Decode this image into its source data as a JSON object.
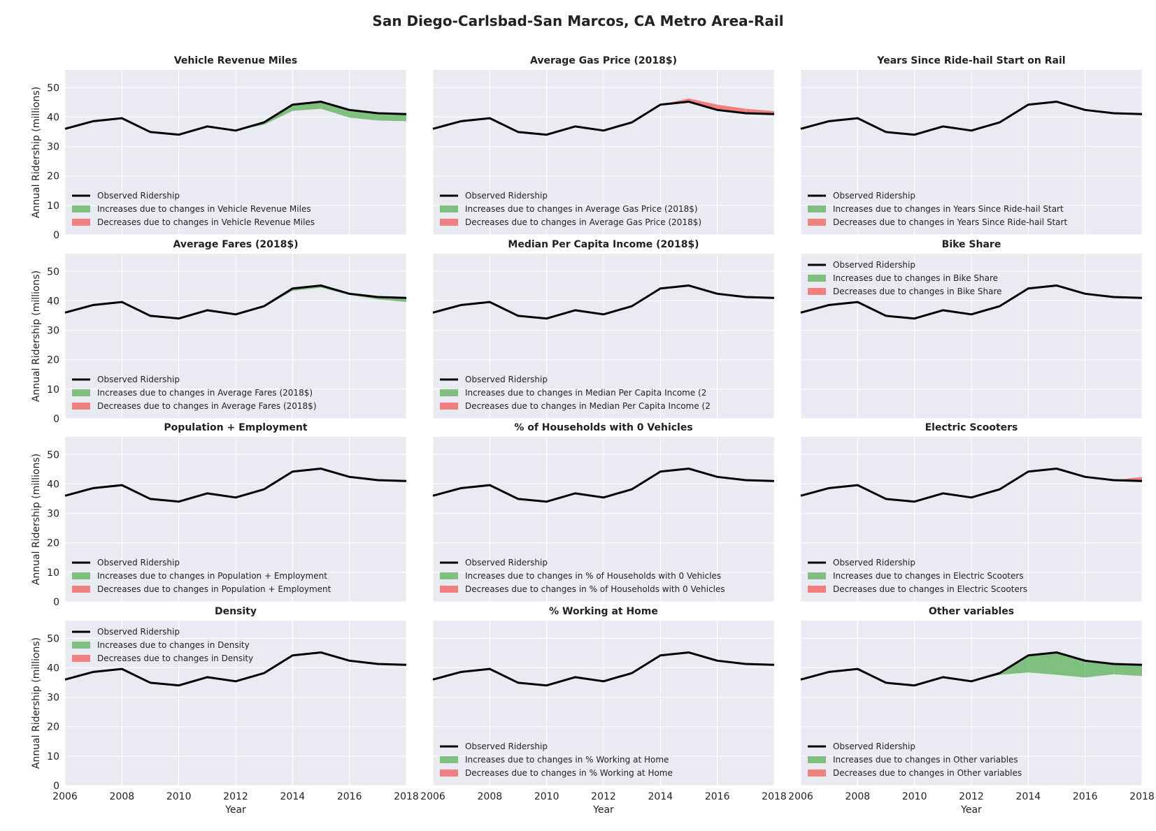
{
  "figure": {
    "title": "San Diego-Carlsbad-San Marcos, CA Metro Area-Rail",
    "xlabel": "Year",
    "ylabel": "Annual Ridership (millions)",
    "colors": {
      "observed": "#000000",
      "increase": "#7fbf7f",
      "decrease": "#f08080",
      "panel_bg": "#eaeaf2",
      "grid": "#ffffff"
    }
  },
  "chart_data": {
    "type": "line",
    "x": [
      2006,
      2007,
      2008,
      2009,
      2010,
      2011,
      2012,
      2013,
      2014,
      2015,
      2016,
      2017,
      2018
    ],
    "observed": [
      36.0,
      38.6,
      39.6,
      34.9,
      34.0,
      36.8,
      35.4,
      38.2,
      44.2,
      45.2,
      42.4,
      41.3,
      41.0
    ],
    "xlim": [
      2006,
      2018
    ],
    "ylim": [
      0,
      56
    ],
    "xticks": [
      "2006",
      "2008",
      "2010",
      "2012",
      "2014",
      "2016",
      "2018"
    ],
    "yticks": [
      "0",
      "10",
      "20",
      "30",
      "40",
      "50"
    ],
    "grid": true,
    "panels": [
      {
        "title": "Vehicle Revenue Miles",
        "legend_loc": "lower-left",
        "legend": [
          "Observed Ridership",
          "Increases due to changes in Vehicle Revenue Miles",
          "Decreases due to changes in Vehicle Revenue Miles"
        ],
        "counterfactual": [
          36.0,
          38.6,
          39.6,
          34.9,
          34.0,
          36.8,
          35.4,
          37.4,
          42.1,
          42.8,
          39.8,
          38.8,
          38.6
        ]
      },
      {
        "title": "Average Gas Price (2018$)",
        "legend_loc": "lower-left",
        "legend": [
          "Observed Ridership",
          "Increases due to changes in Average Gas Price (2018$)",
          "Decreases due to changes in Average Gas Price (2018$)"
        ],
        "counterfactual": [
          36.0,
          38.6,
          39.6,
          34.9,
          34.0,
          36.8,
          35.4,
          38.2,
          44.2,
          46.3,
          44.2,
          42.8,
          42.0
        ]
      },
      {
        "title": "Years Since Ride-hail Start on Rail",
        "legend_loc": "lower-left",
        "legend": [
          "Observed Ridership",
          "Increases due to changes in Years Since Ride-hail Start",
          "Decreases due to changes in Years Since Ride-hail Start"
        ],
        "counterfactual": [
          36.0,
          38.6,
          39.6,
          34.9,
          34.0,
          36.8,
          35.4,
          38.2,
          44.2,
          45.2,
          42.4,
          41.3,
          41.0
        ]
      },
      {
        "title": "Average Fares (2018$)",
        "legend_loc": "lower-left",
        "legend": [
          "Observed Ridership",
          "Increases due to changes in Average Fares (2018$)",
          "Decreases due to changes in Average Fares (2018$)"
        ],
        "counterfactual": [
          36.0,
          38.6,
          39.6,
          34.9,
          34.0,
          36.8,
          35.4,
          38.0,
          43.4,
          44.5,
          42.0,
          40.5,
          39.6
        ]
      },
      {
        "title": "Median Per Capita Income (2018$)",
        "legend_loc": "lower-left",
        "legend": [
          "Observed Ridership",
          "Increases due to changes in Median Per Capita Income (2",
          "Decreases due to changes in Median Per Capita Income (2"
        ],
        "counterfactual": [
          36.0,
          38.6,
          39.6,
          34.9,
          34.0,
          36.8,
          35.4,
          38.2,
          44.2,
          45.2,
          42.4,
          41.3,
          41.0
        ]
      },
      {
        "title": "Bike Share",
        "legend_loc": "upper-left",
        "legend": [
          "Observed Ridership",
          "Increases due to changes in Bike Share",
          "Decreases due to changes in Bike Share"
        ],
        "counterfactual": [
          36.0,
          38.6,
          39.6,
          34.9,
          34.0,
          36.8,
          35.4,
          38.2,
          44.2,
          45.2,
          42.4,
          41.3,
          41.0
        ]
      },
      {
        "title": "Population + Employment",
        "legend_loc": "lower-left",
        "legend": [
          "Observed Ridership",
          "Increases due to changes in Population + Employment",
          "Decreases due to changes in Population + Employment"
        ],
        "counterfactual": [
          36.0,
          38.6,
          39.6,
          34.9,
          34.0,
          36.8,
          35.4,
          38.2,
          44.2,
          45.2,
          42.4,
          41.3,
          41.0
        ]
      },
      {
        "title": "% of Households with 0 Vehicles",
        "legend_loc": "lower-left",
        "legend": [
          "Observed Ridership",
          "Increases due to changes in % of Households with 0 Vehicles",
          "Decreases due to changes in % of Households with 0 Vehicles"
        ],
        "counterfactual": [
          36.0,
          38.6,
          39.6,
          34.9,
          34.0,
          36.8,
          35.4,
          38.2,
          44.2,
          45.2,
          42.4,
          41.3,
          41.0
        ]
      },
      {
        "title": "Electric Scooters",
        "legend_loc": "lower-left",
        "legend": [
          "Observed Ridership",
          "Increases due to changes in Electric Scooters",
          "Decreases due to changes in Electric Scooters"
        ],
        "counterfactual": [
          36.0,
          38.6,
          39.6,
          34.9,
          34.0,
          36.8,
          35.4,
          38.2,
          44.2,
          45.2,
          42.4,
          41.3,
          42.4
        ]
      },
      {
        "title": "Density",
        "legend_loc": "upper-left",
        "legend": [
          "Observed Ridership",
          "Increases due to changes in Density",
          "Decreases due to changes in Density"
        ],
        "counterfactual": [
          36.0,
          38.6,
          39.6,
          34.9,
          34.0,
          36.8,
          35.4,
          38.2,
          44.2,
          45.2,
          42.4,
          41.3,
          41.0
        ]
      },
      {
        "title": "% Working at Home",
        "legend_loc": "lower-left",
        "legend": [
          "Observed Ridership",
          "Increases due to changes in % Working at Home",
          "Decreases due to changes in % Working at Home"
        ],
        "counterfactual": [
          36.0,
          38.6,
          39.6,
          34.9,
          34.0,
          36.8,
          35.4,
          38.2,
          44.2,
          45.2,
          42.4,
          41.3,
          41.0
        ]
      },
      {
        "title": "Other variables",
        "legend_loc": "lower-left",
        "legend": [
          "Observed Ridership",
          "Increases due to changes in Other variables",
          "Decreases due to changes in Other variables"
        ],
        "counterfactual": [
          36.0,
          38.6,
          39.6,
          34.9,
          34.0,
          36.8,
          35.4,
          37.6,
          38.4,
          37.6,
          36.7,
          37.8,
          37.2
        ]
      }
    ]
  }
}
